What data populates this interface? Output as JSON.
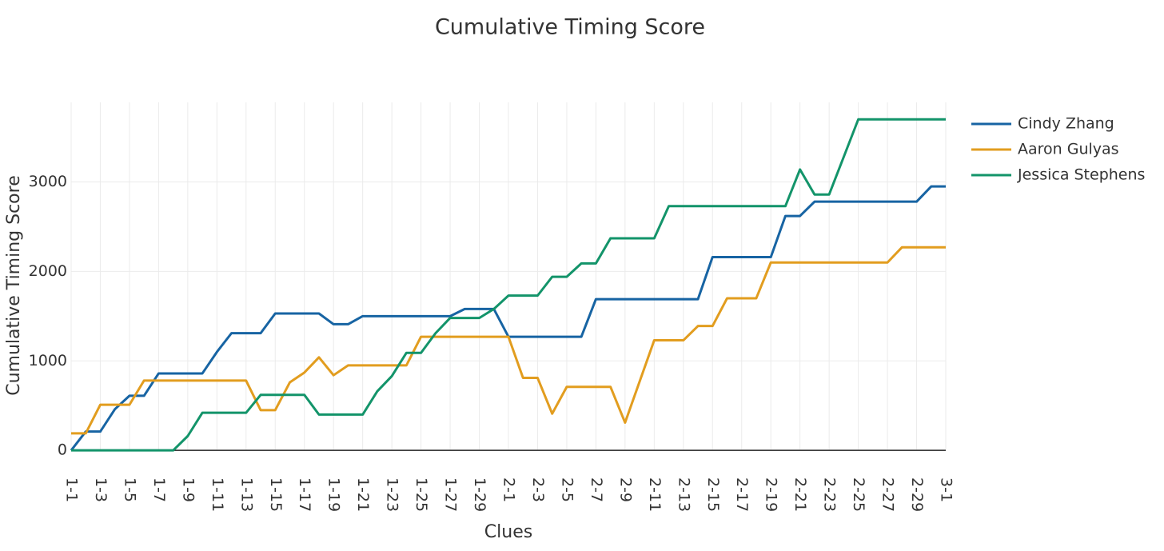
{
  "chart_data": {
    "type": "line",
    "title": "Cumulative Timing Score",
    "x_label": "Clues",
    "y_label": "Cumulative Timing Score",
    "categories": [
      "1-1",
      null,
      "1-3",
      null,
      "1-5",
      null,
      "1-7",
      null,
      "1-9",
      null,
      "1-11",
      null,
      "1-13",
      null,
      "1-15",
      null,
      "1-17",
      null,
      "1-19",
      null,
      "1-21",
      null,
      "1-23",
      null,
      "1-25",
      null,
      "1-27",
      null,
      "1-29",
      null,
      "2-1",
      null,
      "2-3",
      null,
      "2-5",
      null,
      "2-7",
      null,
      "2-9",
      null,
      "2-11",
      null,
      "2-13",
      null,
      "2-15",
      null,
      "2-17",
      null,
      "2-19",
      null,
      "2-21",
      null,
      "2-23",
      null,
      "2-25",
      null,
      "2-27",
      null,
      "2-29",
      null,
      "3-1"
    ],
    "series": [
      {
        "name": "Cindy Zhang",
        "color": "#1764a3",
        "values": [
          0,
          210,
          210,
          460,
          610,
          610,
          860,
          860,
          860,
          860,
          1100,
          1310,
          1310,
          1310,
          1530,
          1530,
          1530,
          1530,
          1410,
          1410,
          1500,
          1500,
          1500,
          1500,
          1500,
          1500,
          1500,
          1580,
          1580,
          1580,
          1270,
          1270,
          1270,
          1270,
          1270,
          1270,
          1690,
          1690,
          1690,
          1690,
          1690,
          1690,
          1690,
          1690,
          2160,
          2160,
          2160,
          2160,
          2160,
          2620,
          2620,
          2780,
          2780,
          2780,
          2780,
          2780,
          2780,
          2780,
          2780,
          2950,
          2950
        ]
      },
      {
        "name": "Aaron Gulyas",
        "color": "#e29d1f",
        "values": [
          190,
          190,
          510,
          510,
          510,
          780,
          780,
          780,
          780,
          780,
          780,
          780,
          780,
          450,
          450,
          760,
          870,
          1040,
          840,
          950,
          950,
          950,
          950,
          950,
          1270,
          1270,
          1270,
          1270,
          1270,
          1270,
          1270,
          810,
          810,
          410,
          710,
          710,
          710,
          710,
          310,
          770,
          1230,
          1230,
          1230,
          1390,
          1390,
          1700,
          1700,
          1700,
          2100,
          2100,
          2100,
          2100,
          2100,
          2100,
          2100,
          2100,
          2100,
          2270,
          2270,
          2270,
          2270
        ]
      },
      {
        "name": "Jessica Stephens",
        "color": "#13946a",
        "values": [
          0,
          0,
          0,
          0,
          0,
          0,
          0,
          0,
          160,
          420,
          420,
          420,
          420,
          620,
          620,
          620,
          620,
          400,
          400,
          400,
          400,
          660,
          830,
          1090,
          1090,
          1310,
          1480,
          1480,
          1480,
          1580,
          1730,
          1730,
          1730,
          1940,
          1940,
          2090,
          2090,
          2370,
          2370,
          2370,
          2370,
          2730,
          2730,
          2730,
          2730,
          2730,
          2730,
          2730,
          2730,
          2730,
          3140,
          2860,
          2860,
          3280,
          3700,
          3700,
          3700,
          3700,
          3700,
          3700,
          3700
        ]
      }
    ],
    "ylim": [
      -240,
      3890
    ],
    "yticks": [
      0,
      1000,
      2000,
      3000
    ],
    "grid": true,
    "legend": "right"
  }
}
